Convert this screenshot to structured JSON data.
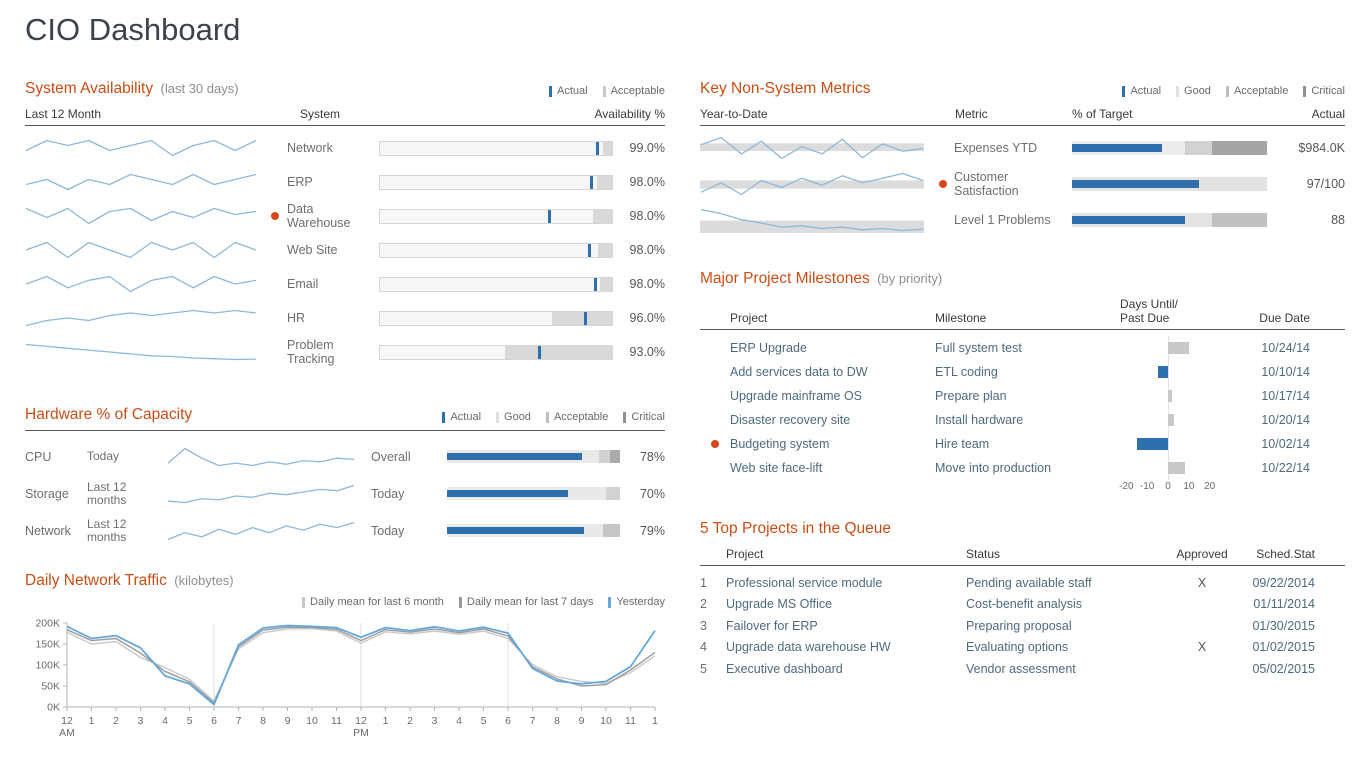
{
  "page": {
    "title": "CIO Dashboard"
  },
  "colors": {
    "accent": "#c94e15",
    "blue": "#2e6fae",
    "spark_blue": "#8fb8d8",
    "alert": "#d8491a",
    "acceptable_gray": "#d9d9d9"
  },
  "panels": {
    "system_availability": {
      "title": "System Availability",
      "subtitle": "(last 30 days)",
      "legend": [
        {
          "label": "Actual",
          "color": "#2e6fae"
        },
        {
          "label": "Acceptable",
          "color": "#c9c9c9"
        }
      ],
      "columns": {
        "trend": "Last 12 Month",
        "system": "System",
        "value": "Availability %"
      }
    },
    "hardware": {
      "title": "Hardware % of Capacity",
      "legend": [
        {
          "label": "Actual",
          "color": "#2e6fae"
        },
        {
          "label": "Good",
          "color": "#e0e0e0"
        },
        {
          "label": "Acceptable",
          "color": "#bdbdbd"
        },
        {
          "label": "Critical",
          "color": "#8f8f8f"
        }
      ]
    },
    "traffic": {
      "title": "Daily Network Traffic",
      "subtitle": "(kilobytes)",
      "legend": [
        {
          "label": "Daily mean for last 6 month",
          "color": "#c8c8c8"
        },
        {
          "label": "Daily mean for last 7 days",
          "color": "#9a9a9a"
        },
        {
          "label": "Yesterday",
          "color": "#64a8dc"
        }
      ]
    },
    "key_metrics": {
      "title": "Key Non-System Metrics",
      "legend": [
        {
          "label": "Actual",
          "color": "#2e6fae"
        },
        {
          "label": "Good",
          "color": "#e0e0e0"
        },
        {
          "label": "Acceptable",
          "color": "#bdbdbd"
        },
        {
          "label": "Critical",
          "color": "#8f8f8f"
        }
      ],
      "columns": {
        "trend": "Year-to-Date",
        "metric": "Metric",
        "target": "% of Target",
        "actual": "Actual"
      }
    },
    "milestones": {
      "title": "Major Project Milestones",
      "subtitle": "(by priority)",
      "columns": {
        "project": "Project",
        "milestone": "Milestone",
        "days": "Days Until/\nPast Due",
        "due": "Due Date"
      }
    },
    "queue": {
      "title": "5 Top Projects in the Queue",
      "columns": {
        "project": "Project",
        "status": "Status",
        "approved": "Approved",
        "sched": "Sched.Stat"
      }
    }
  },
  "chart_data": [
    {
      "id": "system_availability",
      "title": "System Availability (last 30 days)",
      "type": "bullet",
      "rows": [
        {
          "system": "Network",
          "availability": "99.0%",
          "alert": false,
          "actual_pct": 93.5,
          "acceptable_from_pct": 96,
          "trend": [
            97,
            99,
            98,
            99,
            97,
            98,
            99,
            96,
            98,
            99,
            97,
            99
          ]
        },
        {
          "system": "ERP",
          "availability": "98.0%",
          "alert": false,
          "actual_pct": 91,
          "acceptable_from_pct": 93.5,
          "trend": [
            96,
            97,
            95,
            97,
            96,
            98,
            97,
            96,
            98,
            96,
            97,
            98
          ]
        },
        {
          "system": "Data Warehouse",
          "availability": "98.0%",
          "alert": true,
          "actual_pct": 73,
          "acceptable_from_pct": 92,
          "trend": [
            97,
            94,
            97,
            92,
            96,
            97,
            93,
            96,
            94,
            97,
            95,
            96
          ]
        },
        {
          "system": "Web Site",
          "availability": "98.0%",
          "alert": false,
          "actual_pct": 90,
          "acceptable_from_pct": 94,
          "trend": [
            97,
            98,
            96,
            98,
            97,
            96,
            98,
            97,
            98,
            96,
            98,
            97
          ]
        },
        {
          "system": "Email",
          "availability": "98.0%",
          "alert": false,
          "actual_pct": 92.5,
          "acceptable_from_pct": 95,
          "trend": [
            96,
            98,
            95,
            97,
            98,
            94,
            97,
            98,
            95,
            98,
            96,
            97
          ]
        },
        {
          "system": "HR",
          "availability": "96.0%",
          "alert": false,
          "actual_pct": 88.5,
          "acceptable_from_pct": 74,
          "trend": [
            92,
            94,
            95,
            94,
            96,
            97,
            96,
            97,
            98,
            97,
            98,
            97
          ]
        },
        {
          "system": "Problem Tracking",
          "availability": "93.0%",
          "alert": false,
          "actual_pct": 68.5,
          "acceptable_from_pct": 54,
          "trend": [
            97,
            96.5,
            96,
            95.5,
            95,
            94.5,
            94,
            93.8,
            93.4,
            93.2,
            93,
            93.1
          ]
        }
      ]
    },
    {
      "id": "hardware_capacity",
      "title": "Hardware % of Capacity",
      "type": "bullet",
      "rows": [
        {
          "component": "CPU",
          "period": "Today",
          "scope": "Overall",
          "value": "78%",
          "bar_pct": 78,
          "zones": [
            {
              "to_pct": 88,
              "color": "#e9e9e9"
            },
            {
              "to_pct": 94,
              "color": "#d2d2d2"
            },
            {
              "to_pct": 100,
              "color": "#ababab"
            }
          ],
          "trend": [
            62,
            74,
            66,
            60,
            62,
            60,
            63,
            61,
            64,
            63,
            66,
            65
          ]
        },
        {
          "component": "Storage",
          "period": "Last 12 months",
          "scope": "Today",
          "value": "70%",
          "bar_pct": 70,
          "zones": [
            {
              "to_pct": 92,
              "color": "#e9e9e9"
            },
            {
              "to_pct": 100,
              "color": "#d2d2d2"
            }
          ],
          "trend": [
            56,
            55,
            58,
            57,
            60,
            59,
            62,
            61,
            63,
            65,
            64,
            68
          ]
        },
        {
          "component": "Network",
          "period": "Last 12 months",
          "scope": "Today",
          "value": "79%",
          "bar_pct": 79,
          "zones": [
            {
              "to_pct": 90,
              "color": "#e9e9e9"
            },
            {
              "to_pct": 100,
              "color": "#c6c6c6"
            }
          ],
          "trend": [
            58,
            66,
            61,
            70,
            64,
            72,
            66,
            74,
            69,
            76,
            72,
            78
          ]
        }
      ]
    },
    {
      "id": "daily_network_traffic",
      "title": "Daily Network Traffic (kilobytes)",
      "type": "line",
      "x_labels": [
        "12 AM",
        "1",
        "2",
        "3",
        "4",
        "5",
        "6",
        "7",
        "8",
        "9",
        "10",
        "11",
        "12 PM",
        "1",
        "2",
        "3",
        "4",
        "5",
        "6",
        "7",
        "8",
        "9",
        "10",
        "11",
        "1"
      ],
      "ylim": [
        0,
        200
      ],
      "y_ticks": [
        {
          "v": 0,
          "label": "0K"
        },
        {
          "v": 50,
          "label": "50K"
        },
        {
          "v": 100,
          "label": "100K"
        },
        {
          "v": 150,
          "label": "150K"
        },
        {
          "v": 200,
          "label": "200K"
        }
      ],
      "gridline_indexes": [
        6,
        12,
        18
      ],
      "series": [
        {
          "name": "Daily mean for last 6 month",
          "color": "#c8c8c8",
          "values": [
            178,
            150,
            156,
            118,
            94,
            66,
            14,
            138,
            177,
            186,
            187,
            181,
            152,
            179,
            174,
            181,
            173,
            181,
            163,
            101,
            72,
            61,
            56,
            82,
            122
          ]
        },
        {
          "name": "Daily mean for last 7 days",
          "color": "#9a9a9a",
          "values": [
            184,
            158,
            163,
            128,
            85,
            60,
            10,
            143,
            183,
            190,
            189,
            185,
            158,
            184,
            178,
            186,
            177,
            186,
            169,
            96,
            67,
            50,
            53,
            88,
            130
          ]
        },
        {
          "name": "Yesterday",
          "color": "#64a8dc",
          "values": [
            192,
            163,
            170,
            141,
            74,
            55,
            6,
            148,
            188,
            194,
            192,
            189,
            166,
            189,
            182,
            191,
            181,
            190,
            176,
            92,
            62,
            55,
            61,
            96,
            182
          ]
        }
      ]
    },
    {
      "id": "key_non_system_metrics",
      "title": "Key Non-System Metrics",
      "type": "bullet",
      "rows": [
        {
          "metric": "Expenses YTD",
          "actual": "$984.0K",
          "alert": false,
          "bar_pct": 46,
          "zones": [
            {
              "to_pct": 58,
              "color": "#ededed"
            },
            {
              "to_pct": 72,
              "color": "#d2d2d2"
            },
            {
              "to_pct": 100,
              "color": "#a5a5a5"
            }
          ],
          "band": [
            32,
            62
          ],
          "trend": [
            62,
            70,
            52,
            66,
            47,
            60,
            52,
            68,
            48,
            63,
            55,
            58
          ]
        },
        {
          "metric": "Customer Satisfaction",
          "actual": "97/100",
          "alert": true,
          "bar_pct": 65,
          "zones": [
            {
              "to_pct": 100,
              "color": "#e3e3e3"
            }
          ],
          "band": [
            36,
            68
          ],
          "trend": [
            58,
            62,
            57,
            63,
            60,
            64,
            61,
            65,
            62,
            64,
            66,
            63
          ]
        },
        {
          "metric": "Level 1 Problems",
          "actual": "88",
          "alert": false,
          "bar_pct": 58,
          "zones": [
            {
              "to_pct": 72,
              "color": "#e3e3e3"
            },
            {
              "to_pct": 100,
              "color": "#c0c0c0"
            }
          ],
          "band": [
            52,
            100
          ],
          "trend": [
            76,
            70,
            61,
            56,
            50,
            52,
            48,
            50,
            46,
            48,
            45,
            47
          ]
        }
      ]
    },
    {
      "id": "project_milestones",
      "title": "Major Project Milestones (by priority)",
      "type": "bar",
      "axis_ticks": [
        "-20",
        "-10",
        "0",
        "10",
        "20"
      ],
      "xlim": [
        -23,
        23
      ],
      "rows": [
        {
          "project": "ERP Upgrade",
          "milestone": "Full system test",
          "days": 10,
          "due_date": "10/24/14",
          "alert": false
        },
        {
          "project": "Add services data to DW",
          "milestone": "ETL coding",
          "days": -5,
          "due_date": "10/10/14",
          "alert": false
        },
        {
          "project": "Upgrade mainframe OS",
          "milestone": "Prepare plan",
          "days": 2,
          "due_date": "10/17/14",
          "alert": false
        },
        {
          "project": "Disaster recovery site",
          "milestone": "Install hardware",
          "days": 3,
          "due_date": "10/20/14",
          "alert": false
        },
        {
          "project": "Budgeting system",
          "milestone": "Hire team",
          "days": -15,
          "due_date": "10/02/14",
          "alert": true
        },
        {
          "project": "Web site face-lift",
          "milestone": "Move into production",
          "days": 8,
          "due_date": "10/22/14",
          "alert": false
        }
      ]
    },
    {
      "id": "top_projects_queue",
      "title": "5 Top Projects in the Queue",
      "type": "table",
      "rows": [
        {
          "num": "1",
          "project": "Professional service module",
          "status": "Pending available staff",
          "approved": "X",
          "sched_stat": "09/22/2014"
        },
        {
          "num": "2",
          "project": "Upgrade MS Office",
          "status": "Cost-benefit analysis",
          "approved": "",
          "sched_stat": "01/11/2014"
        },
        {
          "num": "3",
          "project": "Failover for ERP",
          "status": "Preparing proposal",
          "approved": "",
          "sched_stat": "01/30/2015"
        },
        {
          "num": "4",
          "project": "Upgrade data warehouse HW",
          "status": "Evaluating options",
          "approved": "X",
          "sched_stat": "01/02/2015"
        },
        {
          "num": "5",
          "project": "Executive dashboard",
          "status": "Vendor assessment",
          "approved": "",
          "sched_stat": "05/02/2015"
        }
      ]
    }
  ]
}
